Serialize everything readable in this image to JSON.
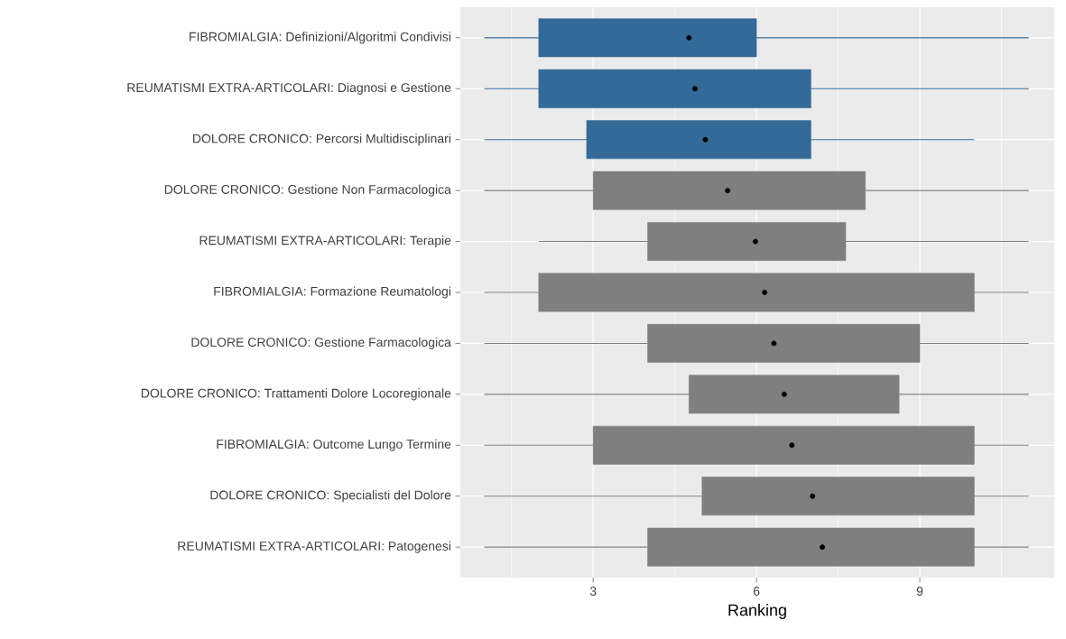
{
  "chart_data": {
    "type": "box",
    "orientation": "horizontal",
    "xlabel": "Ranking",
    "categories": [
      "FIBROMIALGIA: Definizioni/Algoritmi Condivisi",
      "REUMATISMI EXTRA-ARTICOLARI: Diagnosi e Gestione",
      "DOLORE CRONICO: Percorsi Multidisciplinari",
      "DOLORE CRONICO: Gestione Non Farmacologica",
      "REUMATISMI EXTRA-ARTICOLARI: Terapie",
      "FIBROMIALGIA: Formazione Reumatologi",
      "DOLORE CRONICO: Gestione Farmacologica",
      "DOLORE CRONICO: Trattamenti Dolore Locoregionale",
      "FIBROMIALGIA: Outcome Lungo Termine",
      "DOLORE CRONICO: Specialisti del Dolore",
      "REUMATISMI EXTRA-ARTICOLARI: Patogenesi"
    ],
    "boxes": [
      {
        "low": 1,
        "q1": 2,
        "q3": 6,
        "high": 11,
        "mean": 4.76
      },
      {
        "low": 1,
        "q1": 2,
        "q3": 7,
        "high": 11,
        "mean": 4.87
      },
      {
        "low": 1,
        "q1": 2.88,
        "q3": 7,
        "high": 10,
        "mean": 5.06
      },
      {
        "low": 1,
        "q1": 3,
        "q3": 8,
        "high": 11,
        "mean": 5.47
      },
      {
        "low": 2,
        "q1": 4,
        "q3": 7.64,
        "high": 11,
        "mean": 5.98
      },
      {
        "low": 1,
        "q1": 2,
        "q3": 10,
        "high": 11,
        "mean": 6.15
      },
      {
        "low": 1,
        "q1": 4,
        "q3": 9,
        "high": 11,
        "mean": 6.32
      },
      {
        "low": 1,
        "q1": 4.76,
        "q3": 8.62,
        "high": 11,
        "mean": 6.51
      },
      {
        "low": 1,
        "q1": 3,
        "q3": 10,
        "high": 11,
        "mean": 6.65
      },
      {
        "low": 1,
        "q1": 5,
        "q3": 10,
        "high": 11,
        "mean": 7.03
      },
      {
        "low": 1,
        "q1": 4,
        "q3": 10,
        "high": 11,
        "mean": 7.21
      }
    ],
    "colors": [
      "#336a98",
      "#336a98",
      "#336a98",
      "#7f7f7f",
      "#7f7f7f",
      "#7f7f7f",
      "#7f7f7f",
      "#7f7f7f",
      "#7f7f7f",
      "#7f7f7f",
      "#7f7f7f"
    ],
    "xlim": [
      0.56,
      11.47
    ],
    "xticks": [
      3,
      6,
      9
    ],
    "grid": true
  }
}
